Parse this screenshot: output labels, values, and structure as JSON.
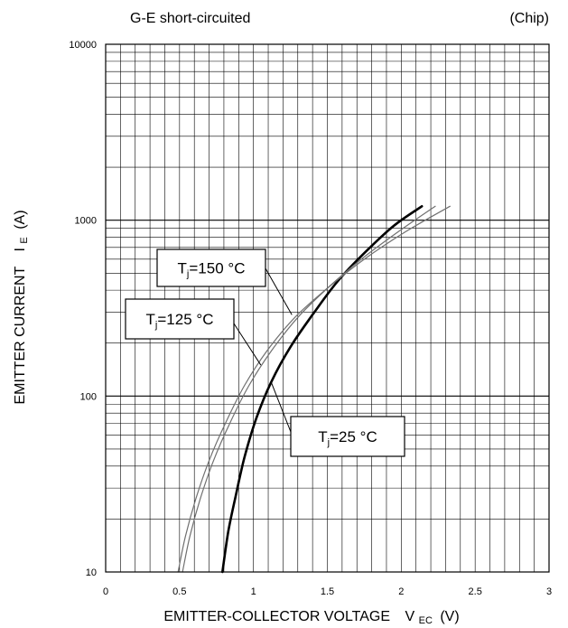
{
  "header": {
    "condition": "G-E short-circuited",
    "scope": "(Chip)"
  },
  "chart_data": {
    "type": "line",
    "title": "",
    "xlabel": {
      "main": "EMITTER-COLLECTOR VOLTAGE",
      "symbol": "V",
      "subscript": "EC",
      "unit": "(V)"
    },
    "ylabel": {
      "main": "EMITTER CURRENT",
      "symbol": "I",
      "subscript": "E",
      "unit": "(A)"
    },
    "xlim": [
      0,
      3
    ],
    "ylim": [
      10,
      10000
    ],
    "yscale": "log",
    "x_ticks": [
      0,
      0.5,
      1,
      1.5,
      2,
      2.5,
      3
    ],
    "x_tick_labels": [
      "0",
      "0.5",
      "1",
      "1.5",
      "2",
      "2.5",
      "3"
    ],
    "y_ticks": [
      10,
      100,
      1000,
      10000
    ],
    "y_tick_labels": [
      "10",
      "100",
      "1000",
      "10000"
    ],
    "grid": true,
    "series": [
      {
        "name_main": "T",
        "name_sub": "j",
        "name_rest": "=25 °C",
        "color": "#000000",
        "width": "bold",
        "x": [
          0.79,
          0.83,
          0.88,
          0.94,
          1.02,
          1.12,
          1.25,
          1.4,
          1.57,
          1.75,
          1.95,
          2.14
        ],
        "y": [
          10,
          17,
          27,
          45,
          75,
          120,
          190,
          290,
          450,
          650,
          930,
          1200
        ]
      },
      {
        "name_main": "T",
        "name_sub": "j",
        "name_rest": "=125 °C",
        "color": "#707070",
        "width": "thin",
        "x": [
          0.52,
          0.57,
          0.64,
          0.73,
          0.84,
          0.97,
          1.12,
          1.3,
          1.5,
          1.73,
          1.98,
          2.23
        ],
        "y": [
          10,
          16,
          26,
          43,
          70,
          115,
          180,
          280,
          410,
          600,
          860,
          1200
        ]
      },
      {
        "name_main": "T",
        "name_sub": "j",
        "name_rest": "=150 °C",
        "color": "#707070",
        "width": "thin",
        "x": [
          0.49,
          0.54,
          0.61,
          0.7,
          0.81,
          0.94,
          1.09,
          1.28,
          1.5,
          1.75,
          2.03,
          2.33
        ],
        "y": [
          10,
          16,
          26,
          43,
          70,
          115,
          180,
          280,
          410,
          600,
          860,
          1200
        ]
      }
    ],
    "annotations": [
      {
        "series": 0,
        "at": [
          1.12,
          120
        ]
      },
      {
        "series": 1,
        "at": [
          1.05,
          150
        ]
      },
      {
        "series": 2,
        "at": [
          1.26,
          290
        ]
      }
    ]
  }
}
